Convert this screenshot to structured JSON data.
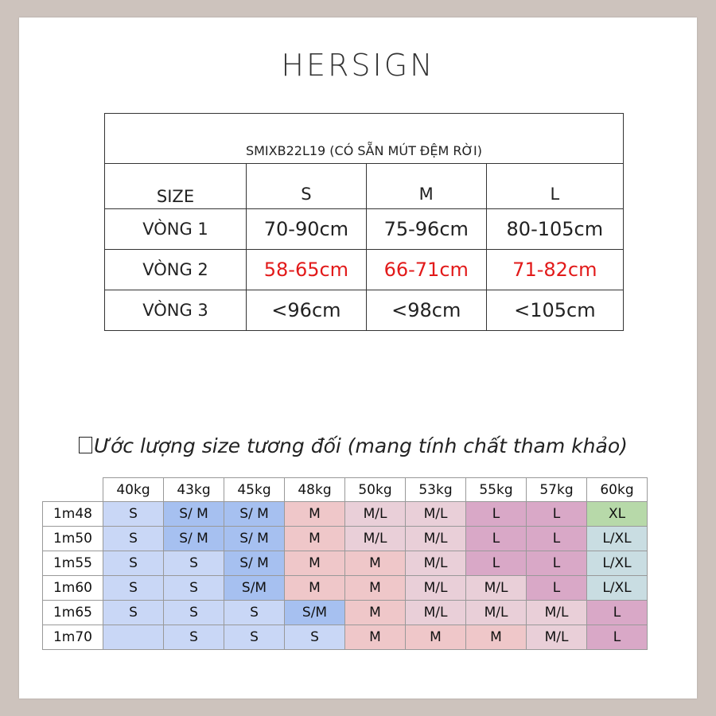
{
  "brand": "HERSIGN",
  "size_chart": {
    "title": "SMIXB22L19 (CÓ SẴN MÚT ĐỆM RỜI)",
    "header": {
      "label": "SIZE",
      "sizes": [
        "S",
        "M",
        "L"
      ]
    },
    "rows": [
      {
        "label": "VÒNG 1",
        "values": [
          "70-90cm",
          "75-96cm",
          "80-105cm"
        ],
        "highlight": false
      },
      {
        "label": "VÒNG 2",
        "values": [
          "58-65cm",
          "66-71cm",
          "71-82cm"
        ],
        "highlight": true,
        "highlight_color": "#e21a1a"
      },
      {
        "label": "VÒNG 3",
        "values": [
          "<96cm",
          "<98cm",
          "<105cm"
        ],
        "highlight": false
      }
    ]
  },
  "estimate_heading": "Ước lượng size tương đối (mang tính chất tham khảo)",
  "size_guide": {
    "weights": [
      "40kg",
      "43kg",
      "45kg",
      "48kg",
      "50kg",
      "53kg",
      "55kg",
      "57kg",
      "60kg"
    ],
    "rows": [
      {
        "height": "1m48",
        "cells": [
          "S",
          "S/ M",
          "S/ M",
          "M",
          "M/L",
          "M/L",
          "L",
          "L",
          "XL"
        ]
      },
      {
        "height": "1m50",
        "cells": [
          "S",
          "S/ M",
          "S/ M",
          "M",
          "M/L",
          "M/L",
          "L",
          "L",
          "L/XL"
        ]
      },
      {
        "height": "1m55",
        "cells": [
          "S",
          "S",
          "S/ M",
          "M",
          "M",
          "M/L",
          "L",
          "L",
          "L/XL"
        ]
      },
      {
        "height": "1m60",
        "cells": [
          "S",
          "S",
          "S/M",
          "M",
          "M",
          "M/L",
          "M/L",
          "L",
          "L/XL"
        ]
      },
      {
        "height": "1m65",
        "cells": [
          "S",
          "S",
          "S",
          "S/M",
          "M",
          "M/L",
          "M/L",
          "M/L",
          "L"
        ]
      },
      {
        "height": "1m70",
        "cells": [
          "",
          "S",
          "S",
          "S",
          "M",
          "M",
          "M",
          "M/L",
          "L"
        ]
      }
    ],
    "colors": {
      "S": "#c9d7f6",
      "S/M": "#a6c0f0",
      "M": "#efc7c9",
      "M/L": "#e9cfd8",
      "L": "#d9a8c7",
      "XL": "#b7d9a9",
      "L/XL": "#c9dde2"
    }
  }
}
